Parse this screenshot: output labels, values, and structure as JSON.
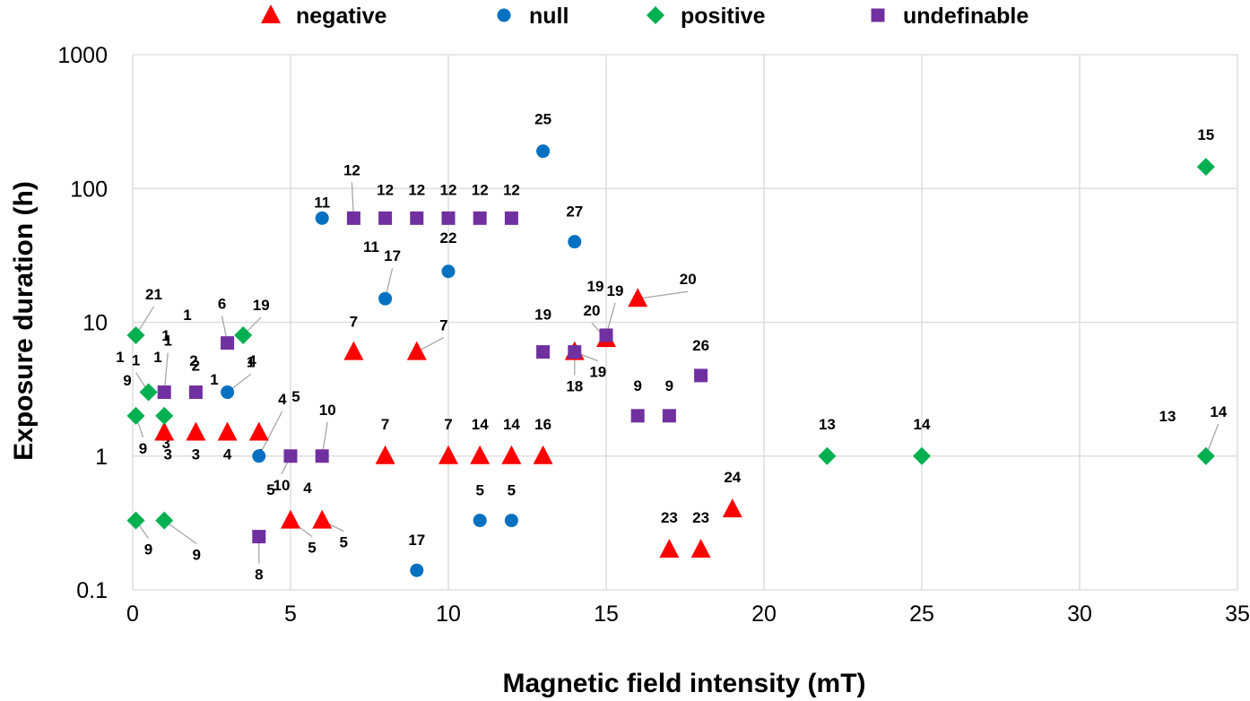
{
  "chart_data": {
    "type": "scatter",
    "title": "",
    "xlabel": "Magnetic field intensity (mT)",
    "ylabel": "Exposure duration (h)",
    "xlim": [
      0,
      35
    ],
    "ylim": [
      0.1,
      1000
    ],
    "y_scale": "log",
    "grid": true,
    "legend_position": "top",
    "x_ticks": [
      "0",
      "5",
      "10",
      "15",
      "20",
      "25",
      "30",
      "35"
    ],
    "y_ticks": [
      "0.1",
      "1",
      "10",
      "100",
      "1000"
    ],
    "series": [
      {
        "name": "negative",
        "color": "#ff0000",
        "marker": "triangle",
        "points": [
          {
            "x": 1,
            "y": 1.5,
            "label": "3"
          },
          {
            "x": 2,
            "y": 1.5,
            "label": "3"
          },
          {
            "x": 3,
            "y": 1.5,
            "label": "4"
          },
          {
            "x": 4,
            "y": 1.5,
            "label": "4"
          },
          {
            "x": 5,
            "y": 0.33,
            "label": "5"
          },
          {
            "x": 6,
            "y": 0.33,
            "label": "5"
          },
          {
            "x": 7,
            "y": 6,
            "label": "7"
          },
          {
            "x": 9,
            "y": 6,
            "label": "7"
          },
          {
            "x": 8,
            "y": 1,
            "label": "7"
          },
          {
            "x": 10,
            "y": 1,
            "label": "7"
          },
          {
            "x": 11,
            "y": 1,
            "label": "14"
          },
          {
            "x": 12,
            "y": 1,
            "label": "14"
          },
          {
            "x": 13,
            "y": 1,
            "label": "16"
          },
          {
            "x": 14,
            "y": 6,
            "label": "18"
          },
          {
            "x": 15,
            "y": 7.5,
            "label": "20"
          },
          {
            "x": 16,
            "y": 15,
            "label": "20"
          },
          {
            "x": 17,
            "y": 0.2,
            "label": "23"
          },
          {
            "x": 18,
            "y": 0.2,
            "label": "23"
          },
          {
            "x": 19,
            "y": 0.4,
            "label": "24"
          }
        ]
      },
      {
        "name": "null",
        "color": "#0070c0",
        "marker": "circle",
        "points": [
          {
            "x": 3,
            "y": 3,
            "label": "1"
          },
          {
            "x": 4,
            "y": 1,
            "label": "4"
          },
          {
            "x": 6,
            "y": 60,
            "label": "11"
          },
          {
            "x": 8,
            "y": 15,
            "label": "17"
          },
          {
            "x": 9,
            "y": 0.14,
            "label": "17"
          },
          {
            "x": 10,
            "y": 24,
            "label": "22"
          },
          {
            "x": 11,
            "y": 0.33,
            "label": "5"
          },
          {
            "x": 12,
            "y": 0.33,
            "label": "5"
          },
          {
            "x": 13,
            "y": 190,
            "label": "25"
          },
          {
            "x": 14,
            "y": 40,
            "label": "27"
          }
        ]
      },
      {
        "name": "positive",
        "color": "#00b050",
        "marker": "diamond",
        "points": [
          {
            "x": 0.1,
            "y": 8,
            "label": "21"
          },
          {
            "x": 3.5,
            "y": 8,
            "label": "19"
          },
          {
            "x": 0.5,
            "y": 3,
            "label": "1"
          },
          {
            "x": 0.1,
            "y": 2,
            "label": "9"
          },
          {
            "x": 1,
            "y": 2,
            "label": "3"
          },
          {
            "x": 0.1,
            "y": 0.33,
            "label": "9"
          },
          {
            "x": 1,
            "y": 0.33,
            "label": "9"
          },
          {
            "x": 22,
            "y": 1,
            "label": "13"
          },
          {
            "x": 25,
            "y": 1,
            "label": "14"
          },
          {
            "x": 34,
            "y": 1,
            "label": "14"
          },
          {
            "x": 34,
            "y": 145,
            "label": "15"
          }
        ]
      },
      {
        "name": "undefinable",
        "color": "#7030a0",
        "marker": "square",
        "points": [
          {
            "x": 1,
            "y": 3,
            "label": "1"
          },
          {
            "x": 2,
            "y": 3,
            "label": "2"
          },
          {
            "x": 3,
            "y": 7,
            "label": "6"
          },
          {
            "x": 4,
            "y": 0.25,
            "label": "8"
          },
          {
            "x": 5,
            "y": 1,
            "label": "10"
          },
          {
            "x": 6,
            "y": 1,
            "label": "10"
          },
          {
            "x": 7,
            "y": 60,
            "label": "12"
          },
          {
            "x": 8,
            "y": 60,
            "label": "12"
          },
          {
            "x": 9,
            "y": 60,
            "label": "12"
          },
          {
            "x": 10,
            "y": 60,
            "label": "12"
          },
          {
            "x": 11,
            "y": 60,
            "label": "12"
          },
          {
            "x": 12,
            "y": 60,
            "label": "12"
          },
          {
            "x": 13,
            "y": 6,
            "label": "19"
          },
          {
            "x": 14,
            "y": 6,
            "label": "19"
          },
          {
            "x": 15,
            "y": 8,
            "label": "19"
          },
          {
            "x": 16,
            "y": 2,
            "label": "9"
          },
          {
            "x": 17,
            "y": 2,
            "label": "9"
          },
          {
            "x": 18,
            "y": 4,
            "label": "26"
          }
        ]
      }
    ],
    "extra_labels": [
      "1",
      "2",
      "1",
      "1",
      "1",
      "9",
      "1",
      "4",
      "5",
      "5",
      "4",
      "11",
      "19",
      "13"
    ]
  }
}
